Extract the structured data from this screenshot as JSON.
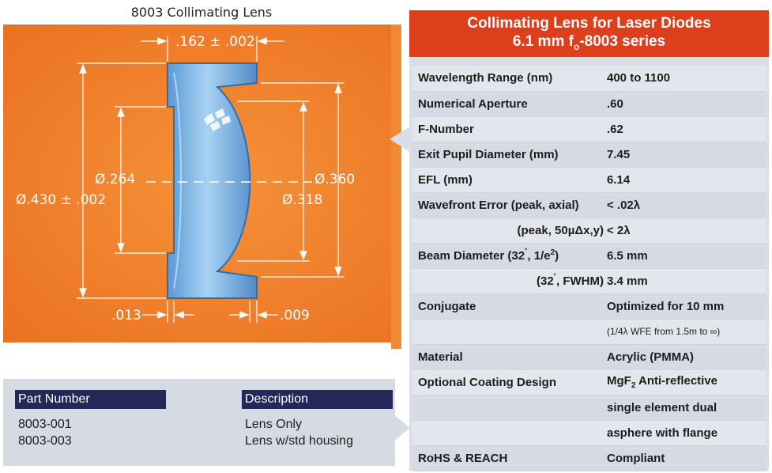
{
  "diagram": {
    "title": "8003 Collimating Lens",
    "dims": {
      "flange_thickness": ".162 ± .002",
      "clear_aperture_inner": "Ø.264",
      "outer_diameter": "Ø.430 ± .002",
      "aspheric_diameter": "Ø.360",
      "flange_inner_diameter": "Ø.318",
      "left_offset": ".013",
      "right_offset": ".009"
    }
  },
  "specs": {
    "header_line1": "Collimating Lens for Laser Diodes",
    "header_line2_pre": "6.1 mm f",
    "header_line2_sub": "o",
    "header_line2_post": "-8003 series",
    "wavelength_label": "Wavelength Range (nm)",
    "wavelength_value": "400 to 1100",
    "na_label": "Numerical Aperture",
    "na_value": ".60",
    "fnum_label": "F-Number",
    "fnum_value": ".62",
    "exit_pupil_label": "Exit Pupil Diameter (mm)",
    "exit_pupil_value": "7.45",
    "efl_label": "EFL (mm)",
    "efl_value": "6.14",
    "wfe_label": "Wavefront Error (peak, axial)",
    "wfe_value": "< .02λ",
    "wfe2_label": "(peak, 50µΔx,y)",
    "wfe2_value": "< 2λ",
    "beam_label_pre": "Beam Diameter (32",
    "beam_label_deg": "˚",
    "beam_label_mid": ", 1/e",
    "beam_label_sup": "2",
    "beam_label_post": ")",
    "beam_value": "6.5 mm",
    "beam2_label_pre": "(32",
    "beam2_label_deg": "˚",
    "beam2_label_post": ", FWHM)",
    "beam2_value": "3.4 mm",
    "conjugate_label": "Conjugate",
    "conjugate_value": "Optimized for 10 mm",
    "conjugate_note": "(1/4λ WFE from 1.5m to ∞)",
    "material_label": "Material",
    "material_value": "Acrylic (PMMA)",
    "coating_label": "Optional Coating Design",
    "coating_value_pre": "MgF",
    "coating_value_sub": "2",
    "coating_value_post": " Anti-reflective",
    "coating_line2": "single element dual",
    "coating_line3": "asphere with flange",
    "rohs_label": "RoHS & REACH",
    "rohs_value": "Compliant"
  },
  "parts": {
    "col_part": "Part Number",
    "col_desc": "Description",
    "part1": "8003-001",
    "part2": "8003-003",
    "desc1": "Lens Only",
    "desc2": "Lens w/std housing"
  },
  "colors": {
    "orange": "#f07f2c",
    "red_header": "#dd3e1c",
    "navy": "#22285a",
    "lens_blue": "#7fb6e6"
  }
}
